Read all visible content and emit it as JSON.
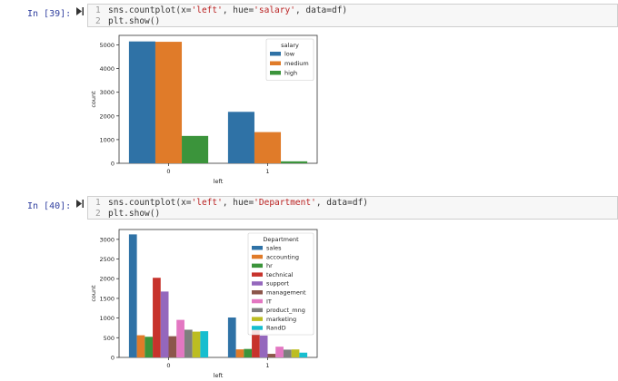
{
  "cells": [
    {
      "prompt": "In [39]:",
      "lines": [
        {
          "num": "1",
          "pre": "sns.countplot(x=",
          "s1": "'left'",
          "mid1": ", hue=",
          "s2": "'salary'",
          "mid2": ", data=df)"
        },
        {
          "num": "2",
          "text": "plt.show()"
        }
      ]
    },
    {
      "prompt": "In [40]:",
      "lines": [
        {
          "num": "1",
          "pre": "sns.countplot(x=",
          "s1": "'left'",
          "mid1": ", hue=",
          "s2": "'Department'",
          "mid2": ", data=df)"
        },
        {
          "num": "2",
          "text": "plt.show()"
        }
      ]
    }
  ],
  "chart_data": [
    {
      "type": "bar",
      "categories": [
        "0",
        "1"
      ],
      "xlabel": "left",
      "ylabel": "count",
      "ylim": [
        0,
        5400
      ],
      "yticks": [
        0,
        1000,
        2000,
        3000,
        4000,
        5000
      ],
      "legend_title": "salary",
      "legend_position": "top-right",
      "series": [
        {
          "name": "low",
          "color": "#2f72a6",
          "values": [
            5144,
            2172
          ]
        },
        {
          "name": "medium",
          "color": "#e07b29",
          "values": [
            5129,
            1317
          ]
        },
        {
          "name": "high",
          "color": "#3b943b",
          "values": [
            1155,
            82
          ]
        }
      ]
    },
    {
      "type": "bar",
      "categories": [
        "0",
        "1"
      ],
      "xlabel": "left",
      "ylabel": "count",
      "ylim": [
        0,
        3250
      ],
      "yticks": [
        0,
        500,
        1000,
        1500,
        2000,
        2500,
        3000
      ],
      "legend_title": "Department",
      "legend_position": "top-right",
      "series": [
        {
          "name": "sales",
          "color": "#2f72a6",
          "values": [
            3126,
            1014
          ]
        },
        {
          "name": "accounting",
          "color": "#e07b29",
          "values": [
            563,
            204
          ]
        },
        {
          "name": "hr",
          "color": "#3b943b",
          "values": [
            524,
            215
          ]
        },
        {
          "name": "technical",
          "color": "#c7332c",
          "values": [
            2023,
            697
          ]
        },
        {
          "name": "support",
          "color": "#9467bd",
          "values": [
            1674,
            555
          ]
        },
        {
          "name": "management",
          "color": "#8c564b",
          "values": [
            539,
            91
          ]
        },
        {
          "name": "IT",
          "color": "#e377c2",
          "values": [
            954,
            273
          ]
        },
        {
          "name": "product_mng",
          "color": "#7f7f7f",
          "values": [
            704,
            198
          ]
        },
        {
          "name": "marketing",
          "color": "#bcbd22",
          "values": [
            655,
            203
          ]
        },
        {
          "name": "RandD",
          "color": "#17becf",
          "values": [
            666,
            121
          ]
        }
      ]
    }
  ]
}
